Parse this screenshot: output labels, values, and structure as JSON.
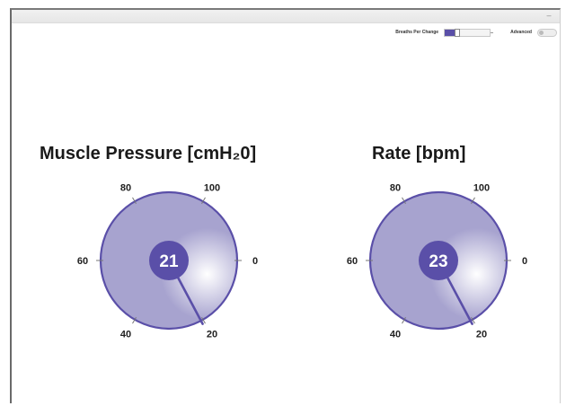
{
  "controls": {
    "breaths_label": "Breaths Per Change",
    "breaths_value": "1",
    "advanced_label": "Advanced",
    "advanced_on": false,
    "accent": "#5a4fa8"
  },
  "gauges": [
    {
      "title": "Muscle Pressure [cmH₂0]",
      "value": "21",
      "ticks": [
        "0",
        "20",
        "40",
        "60",
        "80",
        "100"
      ]
    },
    {
      "title": "Rate [bpm]",
      "value": "23",
      "ticks": [
        "0",
        "20",
        "40",
        "60",
        "80",
        "100"
      ]
    }
  ],
  "colors": {
    "gauge_fill": "#a7a3cf",
    "gauge_stroke": "#5a4fa8",
    "center": "#5a4fa8",
    "needle": "#5a4fa8"
  }
}
